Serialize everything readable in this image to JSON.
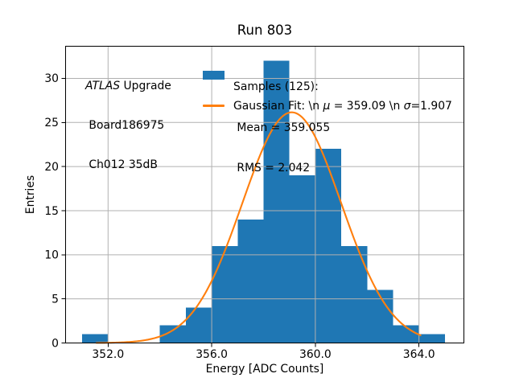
{
  "figure": {
    "title": "Run 803",
    "xlabel": "Energy [ADC Counts]",
    "ylabel": "Entries"
  },
  "annotation": {
    "line1_parts": [
      {
        "t": "ATLAS",
        "i": true
      },
      {
        "t": " Upgrade",
        "i": false
      }
    ],
    "line2": " Board186975",
    "line3": " Ch012 35dB"
  },
  "legend": {
    "location": "upper center",
    "frame": false,
    "samples_label_lines": [
      "Samples (125):",
      " Mean = 359.055",
      " RMS = 2.042"
    ],
    "gaussian_label_parts": [
      {
        "t": "Gaussian Fit: \\n ",
        "i": false
      },
      {
        "t": "μ",
        "i": true
      },
      {
        "t": " = 359.09 \\n ",
        "i": false
      },
      {
        "t": "σ",
        "i": true
      },
      {
        "t": "=1.907",
        "i": false
      }
    ]
  },
  "chart_data": {
    "type": "bar",
    "subtype": "histogram",
    "title": "Run 803",
    "xlabel": "Energy [ADC Counts]",
    "ylabel": "Entries",
    "bin_edges": [
      351,
      352,
      353,
      354,
      355,
      356,
      357,
      358,
      359,
      360,
      361,
      362,
      363,
      364,
      365
    ],
    "counts": [
      1,
      0,
      0,
      2,
      4,
      11,
      14,
      32,
      19,
      22,
      11,
      6,
      2,
      1
    ],
    "n_samples": 125,
    "mean": 359.055,
    "rms": 2.042,
    "fit": {
      "type": "gaussian",
      "mu": 359.09,
      "sigma": 1.907,
      "amplitude": 26.15,
      "x_start": 351.55,
      "x_end": 364.06
    },
    "xlim": [
      350.36,
      365.74
    ],
    "ylim": [
      0,
      33.66
    ],
    "xticks": [
      352,
      356,
      360,
      364
    ],
    "xtick_labels": [
      "352.0",
      "356.0",
      "360.0",
      "364.0"
    ],
    "yticks": [
      0,
      5,
      10,
      15,
      20,
      25,
      30
    ],
    "ytick_labels": [
      "0",
      "5",
      "10",
      "15",
      "20",
      "25",
      "30"
    ],
    "grid": true,
    "legend_position": "upper center",
    "colors": {
      "bar": "#1f77b4",
      "fit": "#ff7f0e",
      "grid": "#b0b0b0",
      "spine": "#000000",
      "text": "#000000",
      "background": "#ffffff"
    }
  }
}
